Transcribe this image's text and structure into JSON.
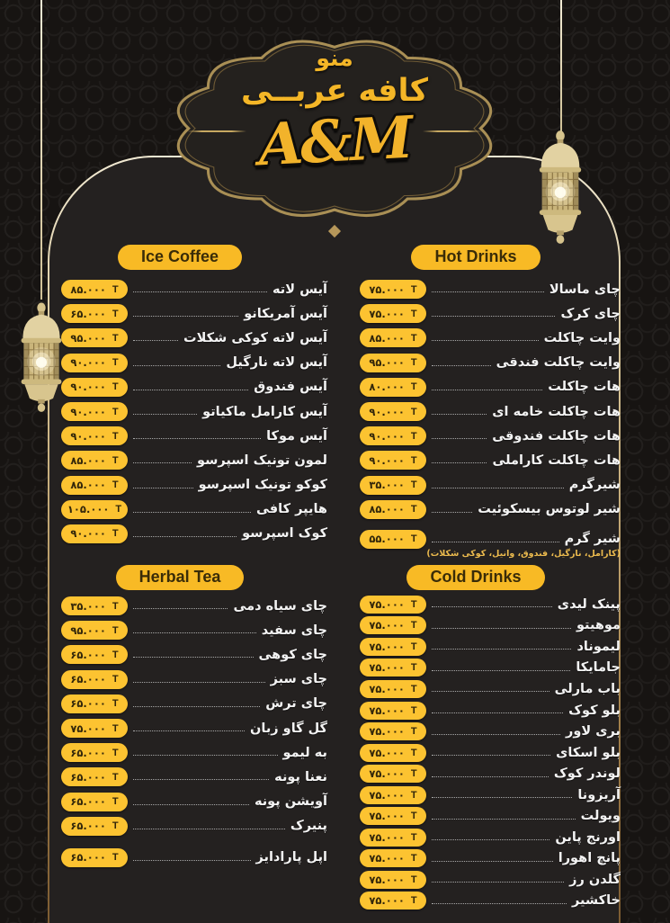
{
  "logo": {
    "menu_word": "منو",
    "cafe_name": "کافه عربــی",
    "monogram": "A&M"
  },
  "currency_symbol": "T",
  "sections": [
    {
      "id": "ice-coffee",
      "title": "Ice Coffee",
      "items": [
        {
          "name": "آیس لاته",
          "price": "۸۵.۰۰۰"
        },
        {
          "name": "آیس آمریکانو",
          "price": "۶۵.۰۰۰"
        },
        {
          "name": "آیس لاته کوکی شکلات",
          "price": "۹۵.۰۰۰"
        },
        {
          "name": "آیس لاته نارگیل",
          "price": "۹۰.۰۰۰"
        },
        {
          "name": "آیس فندوق",
          "price": "۹۰.۰۰۰"
        },
        {
          "name": "آیس کارامل ماکیاتو",
          "price": "۹۰.۰۰۰"
        },
        {
          "name": "آیس موکا",
          "price": "۹۰.۰۰۰"
        },
        {
          "name": "لمون تونیک اسپرسو",
          "price": "۸۵.۰۰۰"
        },
        {
          "name": "کوکو تونیک اسپرسو",
          "price": "۸۵.۰۰۰"
        },
        {
          "name": "هایپر کافی",
          "price": "۱۰۵.۰۰۰"
        },
        {
          "name": "کوک اسپرسو",
          "price": "۹۰.۰۰۰"
        }
      ]
    },
    {
      "id": "hot-drinks",
      "title": "Hot Drinks",
      "items": [
        {
          "name": "چای ماسالا",
          "price": "۷۵.۰۰۰"
        },
        {
          "name": "چای کرک",
          "price": "۷۵.۰۰۰"
        },
        {
          "name": "وایت چاکلت",
          "price": "۸۵.۰۰۰"
        },
        {
          "name": "وایت چاکلت فندقی",
          "price": "۹۵.۰۰۰"
        },
        {
          "name": "هات چاکلت",
          "price": "۸۰.۰۰۰"
        },
        {
          "name": "هات چاکلت خامه ای",
          "price": "۹۰.۰۰۰"
        },
        {
          "name": "هات چاکلت فندوقی",
          "price": "۹۰.۰۰۰"
        },
        {
          "name": "هات چاکلت کاراملی",
          "price": "۹۰.۰۰۰"
        },
        {
          "name": "شیرگرم",
          "price": "۳۵.۰۰۰"
        },
        {
          "name": "شیر لوتوس بیسکوئیت",
          "price": "۸۵.۰۰۰"
        },
        {
          "name": "شیر گرم",
          "price": "۵۵.۰۰۰",
          "note": "(کارامل، نارگیل، فندوق، وانیل، کوکی شکلات)"
        }
      ]
    },
    {
      "id": "herbal-tea",
      "title": "Herbal Tea",
      "items": [
        {
          "name": "چای سیاه دمی",
          "price": "۳۵.۰۰۰"
        },
        {
          "name": "چای سفید",
          "price": "۹۵.۰۰۰"
        },
        {
          "name": "چای کوهی",
          "price": "۶۵.۰۰۰"
        },
        {
          "name": "چای سبز",
          "price": "۶۵.۰۰۰"
        },
        {
          "name": "چای ترش",
          "price": "۶۵.۰۰۰"
        },
        {
          "name": "گل گاو زبان",
          "price": "۷۵.۰۰۰"
        },
        {
          "name": "به لیمو",
          "price": "۶۵.۰۰۰"
        },
        {
          "name": "نعنا پونه",
          "price": "۶۵.۰۰۰"
        },
        {
          "name": "آویشن پونه",
          "price": "۶۵.۰۰۰"
        },
        {
          "name": "پنیرک",
          "price": "۶۵.۰۰۰"
        },
        {
          "name": "اپل پارادایز",
          "price": "۶۵.۰۰۰"
        }
      ]
    },
    {
      "id": "cold-drinks",
      "title": "Cold Drinks",
      "items": [
        {
          "name": "پینک لیدی",
          "price": "۷۵.۰۰۰"
        },
        {
          "name": "موهیتو",
          "price": "۷۵.۰۰۰"
        },
        {
          "name": "لیموناد",
          "price": "۷۵.۰۰۰"
        },
        {
          "name": "جامایکا",
          "price": "۷۵.۰۰۰"
        },
        {
          "name": "باب مارلی",
          "price": "۷۵.۰۰۰"
        },
        {
          "name": "بلو کوک",
          "price": "۷۵.۰۰۰"
        },
        {
          "name": "بری لاور",
          "price": "۷۵.۰۰۰"
        },
        {
          "name": "بلو اسکای",
          "price": "۷۵.۰۰۰"
        },
        {
          "name": "لوندر کوک",
          "price": "۷۵.۰۰۰"
        },
        {
          "name": "آریزونا",
          "price": "۷۵.۰۰۰"
        },
        {
          "name": "ویولت",
          "price": "۷۵.۰۰۰"
        },
        {
          "name": "اورنج پاین",
          "price": "۷۵.۰۰۰"
        },
        {
          "name": "پانچ اهورا",
          "price": "۷۵.۰۰۰"
        },
        {
          "name": "گلدن رز",
          "price": "۷۵.۰۰۰"
        },
        {
          "name": "خاکشیر",
          "price": "۷۵.۰۰۰"
        }
      ]
    }
  ],
  "colors": {
    "background": "#171412",
    "panel": "#242120",
    "accent_yellow": "#f8ba25",
    "price_pill_yellow": "#fcc331",
    "pill_text": "#33270a",
    "item_text": "#f3f3f3",
    "note_yellow": "#ecbb4e",
    "gold_border": "#a98f55"
  }
}
